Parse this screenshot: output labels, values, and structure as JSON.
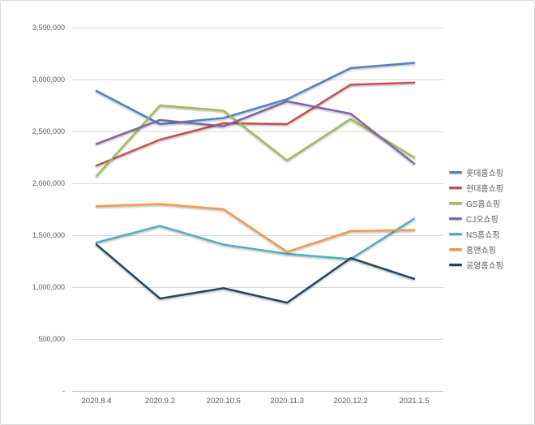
{
  "chart_data": {
    "type": "line",
    "title": "",
    "xlabel": "",
    "ylabel": "",
    "categories": [
      "2020.8.4",
      "2020.9.2",
      "2020.10.6",
      "2020.11.3",
      "2020.12.2",
      "2021.1.5"
    ],
    "series": [
      {
        "name": "롯데홈쇼핑",
        "color": "#4F81BD",
        "values": [
          2890000,
          2570000,
          2630000,
          2810000,
          3110000,
          3160000
        ]
      },
      {
        "name": "현대홈쇼핑",
        "color": "#C0504D",
        "values": [
          2170000,
          2420000,
          2580000,
          2570000,
          2950000,
          2970000
        ]
      },
      {
        "name": "GS홈쇼핑",
        "color": "#9BBB59",
        "values": [
          2070000,
          2750000,
          2700000,
          2220000,
          2620000,
          2250000
        ]
      },
      {
        "name": "CJ오쇼핑",
        "color": "#8064A2",
        "values": [
          2380000,
          2610000,
          2550000,
          2790000,
          2670000,
          2190000
        ]
      },
      {
        "name": "NS홈쇼핑",
        "color": "#4BACC6",
        "values": [
          1430000,
          1590000,
          1410000,
          1320000,
          1270000,
          1660000
        ]
      },
      {
        "name": "홈앤쇼핑",
        "color": "#F79646",
        "values": [
          1780000,
          1800000,
          1750000,
          1340000,
          1540000,
          1550000
        ]
      },
      {
        "name": "공영홈쇼핑",
        "color": "#254061",
        "values": [
          1410000,
          890000,
          990000,
          850000,
          1280000,
          1080000
        ]
      }
    ],
    "ylim": [
      0,
      3500000
    ],
    "ytick_interval": 500000,
    "ytick_labels": [
      "-",
      "500,000",
      "1,000,000",
      "1,500,000",
      "2,000,000",
      "2,500,000",
      "3,000,000",
      "3,500,000"
    ],
    "grid": true,
    "legend_position": "right"
  },
  "colors": {
    "background": "#FFFFFF",
    "frame_border": "#D9D9D9",
    "gridline": "#D9D9D9",
    "axis_line": "#C6C6C6",
    "tick_text": "#595959",
    "legend_text": "#595959"
  }
}
